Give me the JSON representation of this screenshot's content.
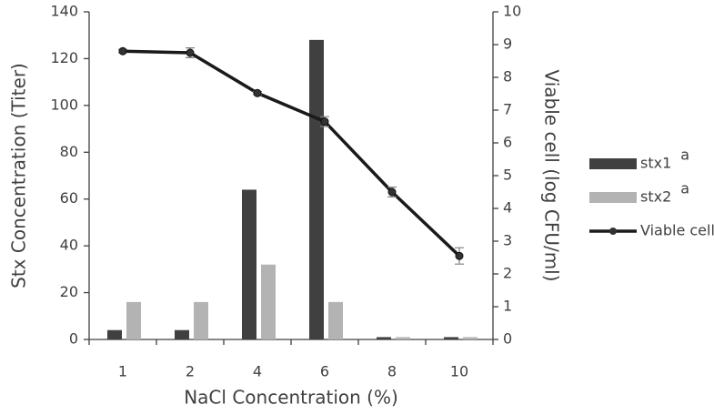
{
  "chart_data": {
    "type": "bar-line",
    "x_label": "NaCl Concentration (%)",
    "y_label": "Stx Concentration (Titer)",
    "y2_label": "Viable cell (log CFU/ml)",
    "categories": [
      "1",
      "2",
      "4",
      "6",
      "8",
      "10"
    ],
    "series": [
      {
        "name": "stx1",
        "note": "a",
        "type": "bar",
        "color": "#404040",
        "values": [
          4,
          4,
          64,
          128,
          1,
          1
        ]
      },
      {
        "name": "stx2",
        "note": "a",
        "type": "bar",
        "color": "#b3b3b3",
        "values": [
          16,
          16,
          32,
          16,
          1,
          1
        ]
      },
      {
        "name": "Viable cell",
        "type": "line",
        "axis": "y2",
        "color": "#1a1a1a",
        "values": [
          8.8,
          8.75,
          7.52,
          6.65,
          4.5,
          2.55
        ],
        "errors": [
          0.05,
          0.15,
          0.05,
          0.15,
          0.15,
          0.25
        ]
      }
    ],
    "ylim": [
      0,
      140
    ],
    "yticks": [
      0,
      20,
      40,
      60,
      80,
      100,
      120,
      140
    ],
    "y2lim": [
      0,
      10
    ],
    "y2ticks": [
      0,
      1,
      2,
      3,
      4,
      5,
      6,
      7,
      8,
      9,
      10
    ],
    "legend": "right"
  }
}
